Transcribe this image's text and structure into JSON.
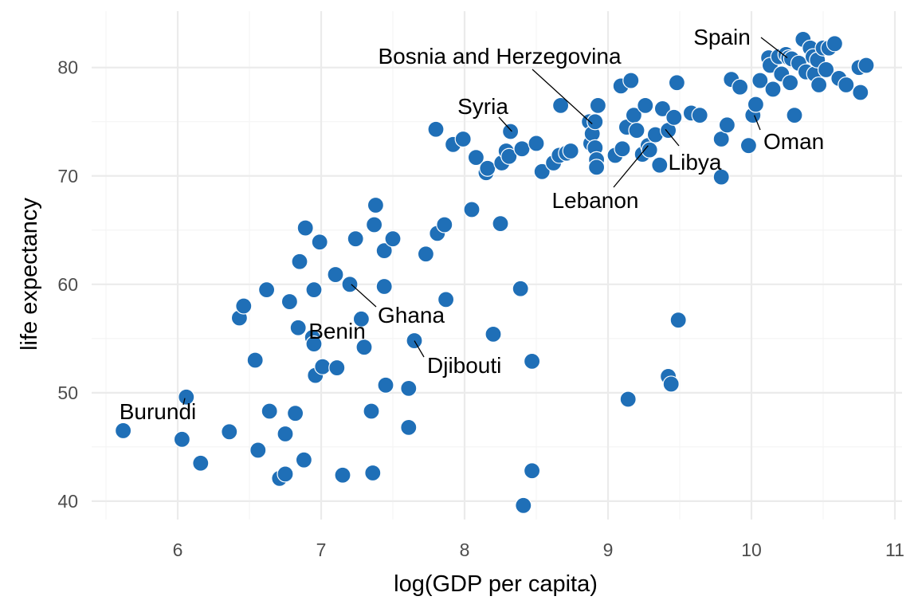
{
  "chart_data": {
    "type": "scatter",
    "title": "",
    "xlabel": "log(GDP per capita)",
    "ylabel": "life expectancy",
    "xlim": [
      5.4,
      11.05
    ],
    "ylim": [
      38.3,
      85.2
    ],
    "x_ticks": [
      6,
      7,
      8,
      9,
      10,
      11
    ],
    "y_ticks": [
      40,
      50,
      60,
      70,
      80
    ],
    "x_tick_labels": [
      "6",
      "7",
      "8",
      "9",
      "10",
      "11"
    ],
    "y_tick_labels": [
      "40",
      "50",
      "60",
      "70",
      "80"
    ],
    "grid": true,
    "legend": "none",
    "point_color": "#1F6FB7",
    "points": [
      [
        5.62,
        46.5
      ],
      [
        6.03,
        45.7
      ],
      [
        6.06,
        49.6
      ],
      [
        6.16,
        43.5
      ],
      [
        6.36,
        46.4
      ],
      [
        6.43,
        56.9
      ],
      [
        6.46,
        58.0
      ],
      [
        6.54,
        53.0
      ],
      [
        6.56,
        44.7
      ],
      [
        6.62,
        59.5
      ],
      [
        6.64,
        48.3
      ],
      [
        6.71,
        42.1
      ],
      [
        6.75,
        42.5
      ],
      [
        6.75,
        46.2
      ],
      [
        6.78,
        58.4
      ],
      [
        6.82,
        48.1
      ],
      [
        6.84,
        56.0
      ],
      [
        6.85,
        62.1
      ],
      [
        6.88,
        43.8
      ],
      [
        6.89,
        65.2
      ],
      [
        6.94,
        55.1
      ],
      [
        6.95,
        54.5
      ],
      [
        6.95,
        59.5
      ],
      [
        6.96,
        51.6
      ],
      [
        6.99,
        63.9
      ],
      [
        7.01,
        52.4
      ],
      [
        7.1,
        60.9
      ],
      [
        7.11,
        52.3
      ],
      [
        7.15,
        42.4
      ],
      [
        7.2,
        60.0
      ],
      [
        7.24,
        64.2
      ],
      [
        7.28,
        56.8
      ],
      [
        7.3,
        54.2
      ],
      [
        7.35,
        48.3
      ],
      [
        7.36,
        42.6
      ],
      [
        7.37,
        65.5
      ],
      [
        7.38,
        67.3
      ],
      [
        7.44,
        59.8
      ],
      [
        7.44,
        63.1
      ],
      [
        7.45,
        50.7
      ],
      [
        7.5,
        64.2
      ],
      [
        7.61,
        50.4
      ],
      [
        7.61,
        46.8
      ],
      [
        7.65,
        54.8
      ],
      [
        7.73,
        62.8
      ],
      [
        7.8,
        74.3
      ],
      [
        7.81,
        64.7
      ],
      [
        7.86,
        65.5
      ],
      [
        7.87,
        58.6
      ],
      [
        7.92,
        72.9
      ],
      [
        7.99,
        73.4
      ],
      [
        8.05,
        66.9
      ],
      [
        8.08,
        71.7
      ],
      [
        8.15,
        70.3
      ],
      [
        8.16,
        70.7
      ],
      [
        8.2,
        55.4
      ],
      [
        8.25,
        65.6
      ],
      [
        8.26,
        71.2
      ],
      [
        8.29,
        72.3
      ],
      [
        8.31,
        71.8
      ],
      [
        8.32,
        74.1
      ],
      [
        8.39,
        59.6
      ],
      [
        8.4,
        72.5
      ],
      [
        8.41,
        39.6
      ],
      [
        8.47,
        52.9
      ],
      [
        8.47,
        42.8
      ],
      [
        8.5,
        73.0
      ],
      [
        8.54,
        70.4
      ],
      [
        8.62,
        71.2
      ],
      [
        8.66,
        71.9
      ],
      [
        8.67,
        76.5
      ],
      [
        8.71,
        72.1
      ],
      [
        8.74,
        72.3
      ],
      [
        8.87,
        75.0
      ],
      [
        8.88,
        73.0
      ],
      [
        8.89,
        73.9
      ],
      [
        8.91,
        75.0
      ],
      [
        8.91,
        72.6
      ],
      [
        8.92,
        71.5
      ],
      [
        8.92,
        70.8
      ],
      [
        8.93,
        76.5
      ],
      [
        9.05,
        71.9
      ],
      [
        9.09,
        78.3
      ],
      [
        9.1,
        72.5
      ],
      [
        9.13,
        74.5
      ],
      [
        9.14,
        49.4
      ],
      [
        9.16,
        78.8
      ],
      [
        9.18,
        75.6
      ],
      [
        9.2,
        74.2
      ],
      [
        9.24,
        72.0
      ],
      [
        9.26,
        76.5
      ],
      [
        9.28,
        72.8
      ],
      [
        9.29,
        72.4
      ],
      [
        9.33,
        73.8
      ],
      [
        9.36,
        71.0
      ],
      [
        9.38,
        76.2
      ],
      [
        9.42,
        74.2
      ],
      [
        9.42,
        51.5
      ],
      [
        9.44,
        50.8
      ],
      [
        9.46,
        75.4
      ],
      [
        9.48,
        78.6
      ],
      [
        9.49,
        56.7
      ],
      [
        9.58,
        75.8
      ],
      [
        9.64,
        75.6
      ],
      [
        9.79,
        73.4
      ],
      [
        9.79,
        69.9
      ],
      [
        9.83,
        74.7
      ],
      [
        9.86,
        78.9
      ],
      [
        9.92,
        78.2
      ],
      [
        9.98,
        72.8
      ],
      [
        10.01,
        75.6
      ],
      [
        10.03,
        76.6
      ],
      [
        10.06,
        78.8
      ],
      [
        10.12,
        80.9
      ],
      [
        10.13,
        80.2
      ],
      [
        10.15,
        78.0
      ],
      [
        10.19,
        81.0
      ],
      [
        10.21,
        79.4
      ],
      [
        10.24,
        81.2
      ],
      [
        10.26,
        80.9
      ],
      [
        10.27,
        78.6
      ],
      [
        10.28,
        80.8
      ],
      [
        10.3,
        75.6
      ],
      [
        10.33,
        80.4
      ],
      [
        10.36,
        82.6
      ],
      [
        10.38,
        79.6
      ],
      [
        10.41,
        81.8
      ],
      [
        10.43,
        81.0
      ],
      [
        10.44,
        79.4
      ],
      [
        10.46,
        80.7
      ],
      [
        10.47,
        78.4
      ],
      [
        10.5,
        81.8
      ],
      [
        10.52,
        79.8
      ],
      [
        10.54,
        81.8
      ],
      [
        10.58,
        82.2
      ],
      [
        10.61,
        79.0
      ],
      [
        10.66,
        78.4
      ],
      [
        10.75,
        80.0
      ],
      [
        10.76,
        77.7
      ],
      [
        10.8,
        80.2
      ]
    ],
    "annotations": [
      {
        "text": "Burundi",
        "x": 6.05,
        "y": 49.5
      },
      {
        "text": "Benin",
        "x": 6.96,
        "y": 55.0
      },
      {
        "text": "Ghana",
        "x": 7.21,
        "y": 60.0
      },
      {
        "text": "Djibouti",
        "x": 7.65,
        "y": 54.8
      },
      {
        "text": "Syria",
        "x": 8.33,
        "y": 74.1
      },
      {
        "text": "Bosnia and Herzegovina",
        "x": 8.89,
        "y": 74.8
      },
      {
        "text": "Lebanon",
        "x": 9.28,
        "y": 72.8
      },
      {
        "text": "Libya",
        "x": 9.4,
        "y": 74.3
      },
      {
        "text": "Oman",
        "x": 10.02,
        "y": 75.6
      },
      {
        "text": "Spain",
        "x": 10.25,
        "y": 80.9
      }
    ]
  }
}
